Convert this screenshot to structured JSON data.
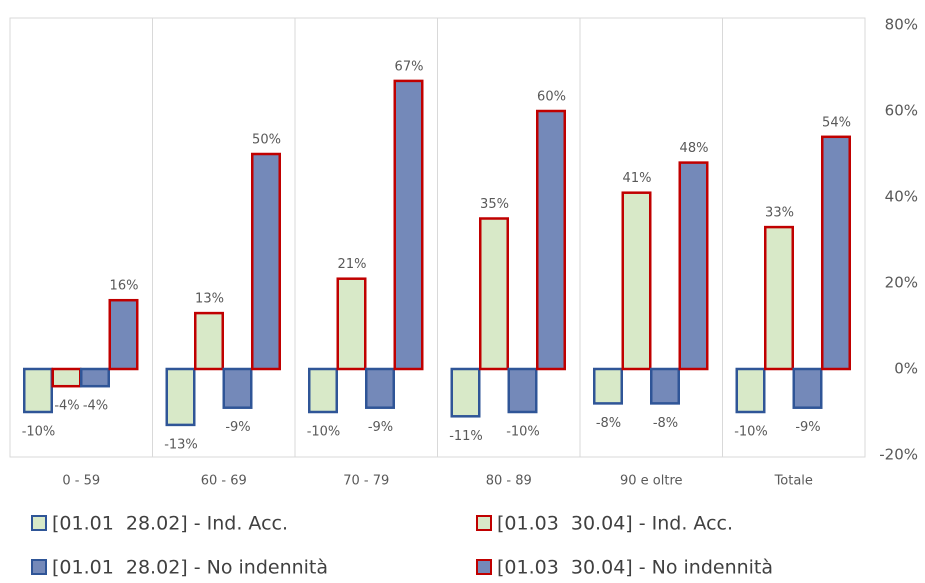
{
  "chart_data": {
    "type": "bar",
    "categories": [
      "0 - 59",
      "60 - 69",
      "70 - 79",
      "80 - 89",
      "90 e oltre",
      "Totale"
    ],
    "series": [
      {
        "name": "[01.01  28.02] - Ind. Acc.",
        "color": "#d8e9c8",
        "border": "#2f5597",
        "values": [
          -10,
          -13,
          -10,
          -11,
          -8,
          -10
        ],
        "value_labels": [
          "-10%",
          "-13%",
          "-10%",
          "-11%",
          "-8%",
          "-10%"
        ]
      },
      {
        "name": "[01.03  30.04] - Ind. Acc.",
        "color": "#d8e9c8",
        "border": "#c00000",
        "values": [
          -4,
          13,
          21,
          35,
          41,
          33
        ],
        "value_labels": [
          "-4%",
          "13%",
          "21%",
          "35%",
          "41%",
          "33%"
        ]
      },
      {
        "name": "[01.01  28.02] - No indennità",
        "color": "#7489b9",
        "border": "#2f5597",
        "values": [
          -4,
          -9,
          -9,
          -10,
          -8,
          -9
        ],
        "value_labels": [
          "-4%",
          "-9%",
          "-9%",
          "-10%",
          "-8%",
          "-9%"
        ]
      },
      {
        "name": "[01.03  30.04] - No indennità",
        "color": "#7489b9",
        "border": "#c00000",
        "values": [
          16,
          50,
          67,
          60,
          48,
          54
        ],
        "value_labels": [
          "16%",
          "50%",
          "67%",
          "60%",
          "48%",
          "54%"
        ]
      }
    ],
    "ylim": [
      -20,
      80
    ],
    "yticks": [
      {
        "value": -20,
        "label": "-20%"
      },
      {
        "value": 0,
        "label": "0%"
      },
      {
        "value": 20,
        "label": "20%"
      },
      {
        "value": 40,
        "label": "40%"
      },
      {
        "value": 60,
        "label": "60%"
      },
      {
        "value": 80,
        "label": "80%"
      }
    ],
    "y_axis_side": "right",
    "legend": "bottom"
  }
}
